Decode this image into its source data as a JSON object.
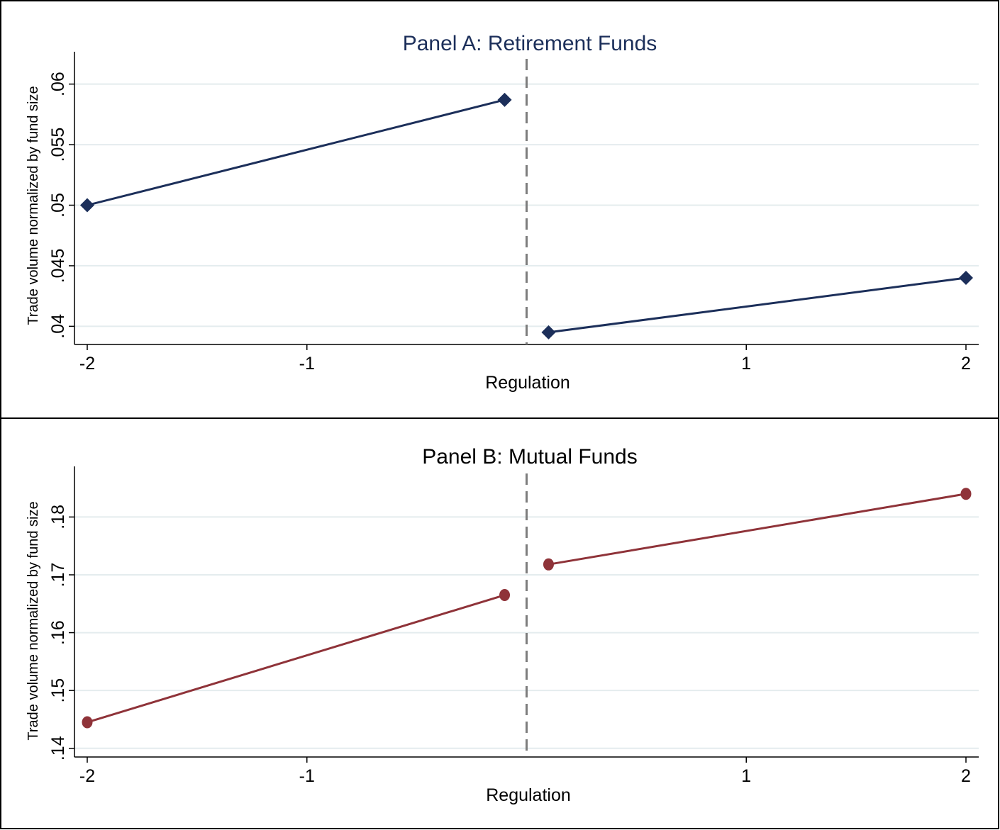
{
  "chart_data": [
    {
      "type": "line",
      "title": "Panel A: Retirement Funds",
      "xlabel": "Regulation",
      "ylabel": "Trade volume normalized by fund size",
      "xlim": [
        -2,
        2
      ],
      "ylim": [
        0.0385,
        0.0615
      ],
      "x_ticks": [
        "-2",
        "-1",
        "1",
        "2"
      ],
      "y_ticks": [
        ".04",
        ".045",
        ".05",
        ".055",
        ".06"
      ],
      "grid": true,
      "vline": {
        "x": 0,
        "style": "dashed"
      },
      "marker": "diamond",
      "color": "#1c2f5a",
      "title_color": "#1c2f5a",
      "series": [
        {
          "segments": [
            {
              "x": [
                -2,
                -0.1
              ],
              "y": [
                0.05,
                0.0587
              ]
            },
            {
              "x": [
                0.1,
                2
              ],
              "y": [
                0.0395,
                0.044
              ]
            }
          ]
        }
      ]
    },
    {
      "type": "line",
      "title": "Panel B: Mutual Funds",
      "xlabel": "Regulation",
      "ylabel": "Trade volume normalized by fund size",
      "xlim": [
        -2,
        2
      ],
      "ylim": [
        0.1385,
        0.1863
      ],
      "x_ticks": [
        "-2",
        "-1",
        "1",
        "2"
      ],
      "y_ticks": [
        ".14",
        ".15",
        ".16",
        ".17",
        ".18"
      ],
      "grid": true,
      "vline": {
        "x": 0,
        "style": "dashed"
      },
      "marker": "circle",
      "color": "#8f3339",
      "title_color": "#000000",
      "series": [
        {
          "segments": [
            {
              "x": [
                -2,
                -0.1
              ],
              "y": [
                0.1445,
                0.1665
              ]
            },
            {
              "x": [
                0.1,
                2
              ],
              "y": [
                0.1718,
                0.184
              ]
            }
          ]
        }
      ]
    }
  ]
}
